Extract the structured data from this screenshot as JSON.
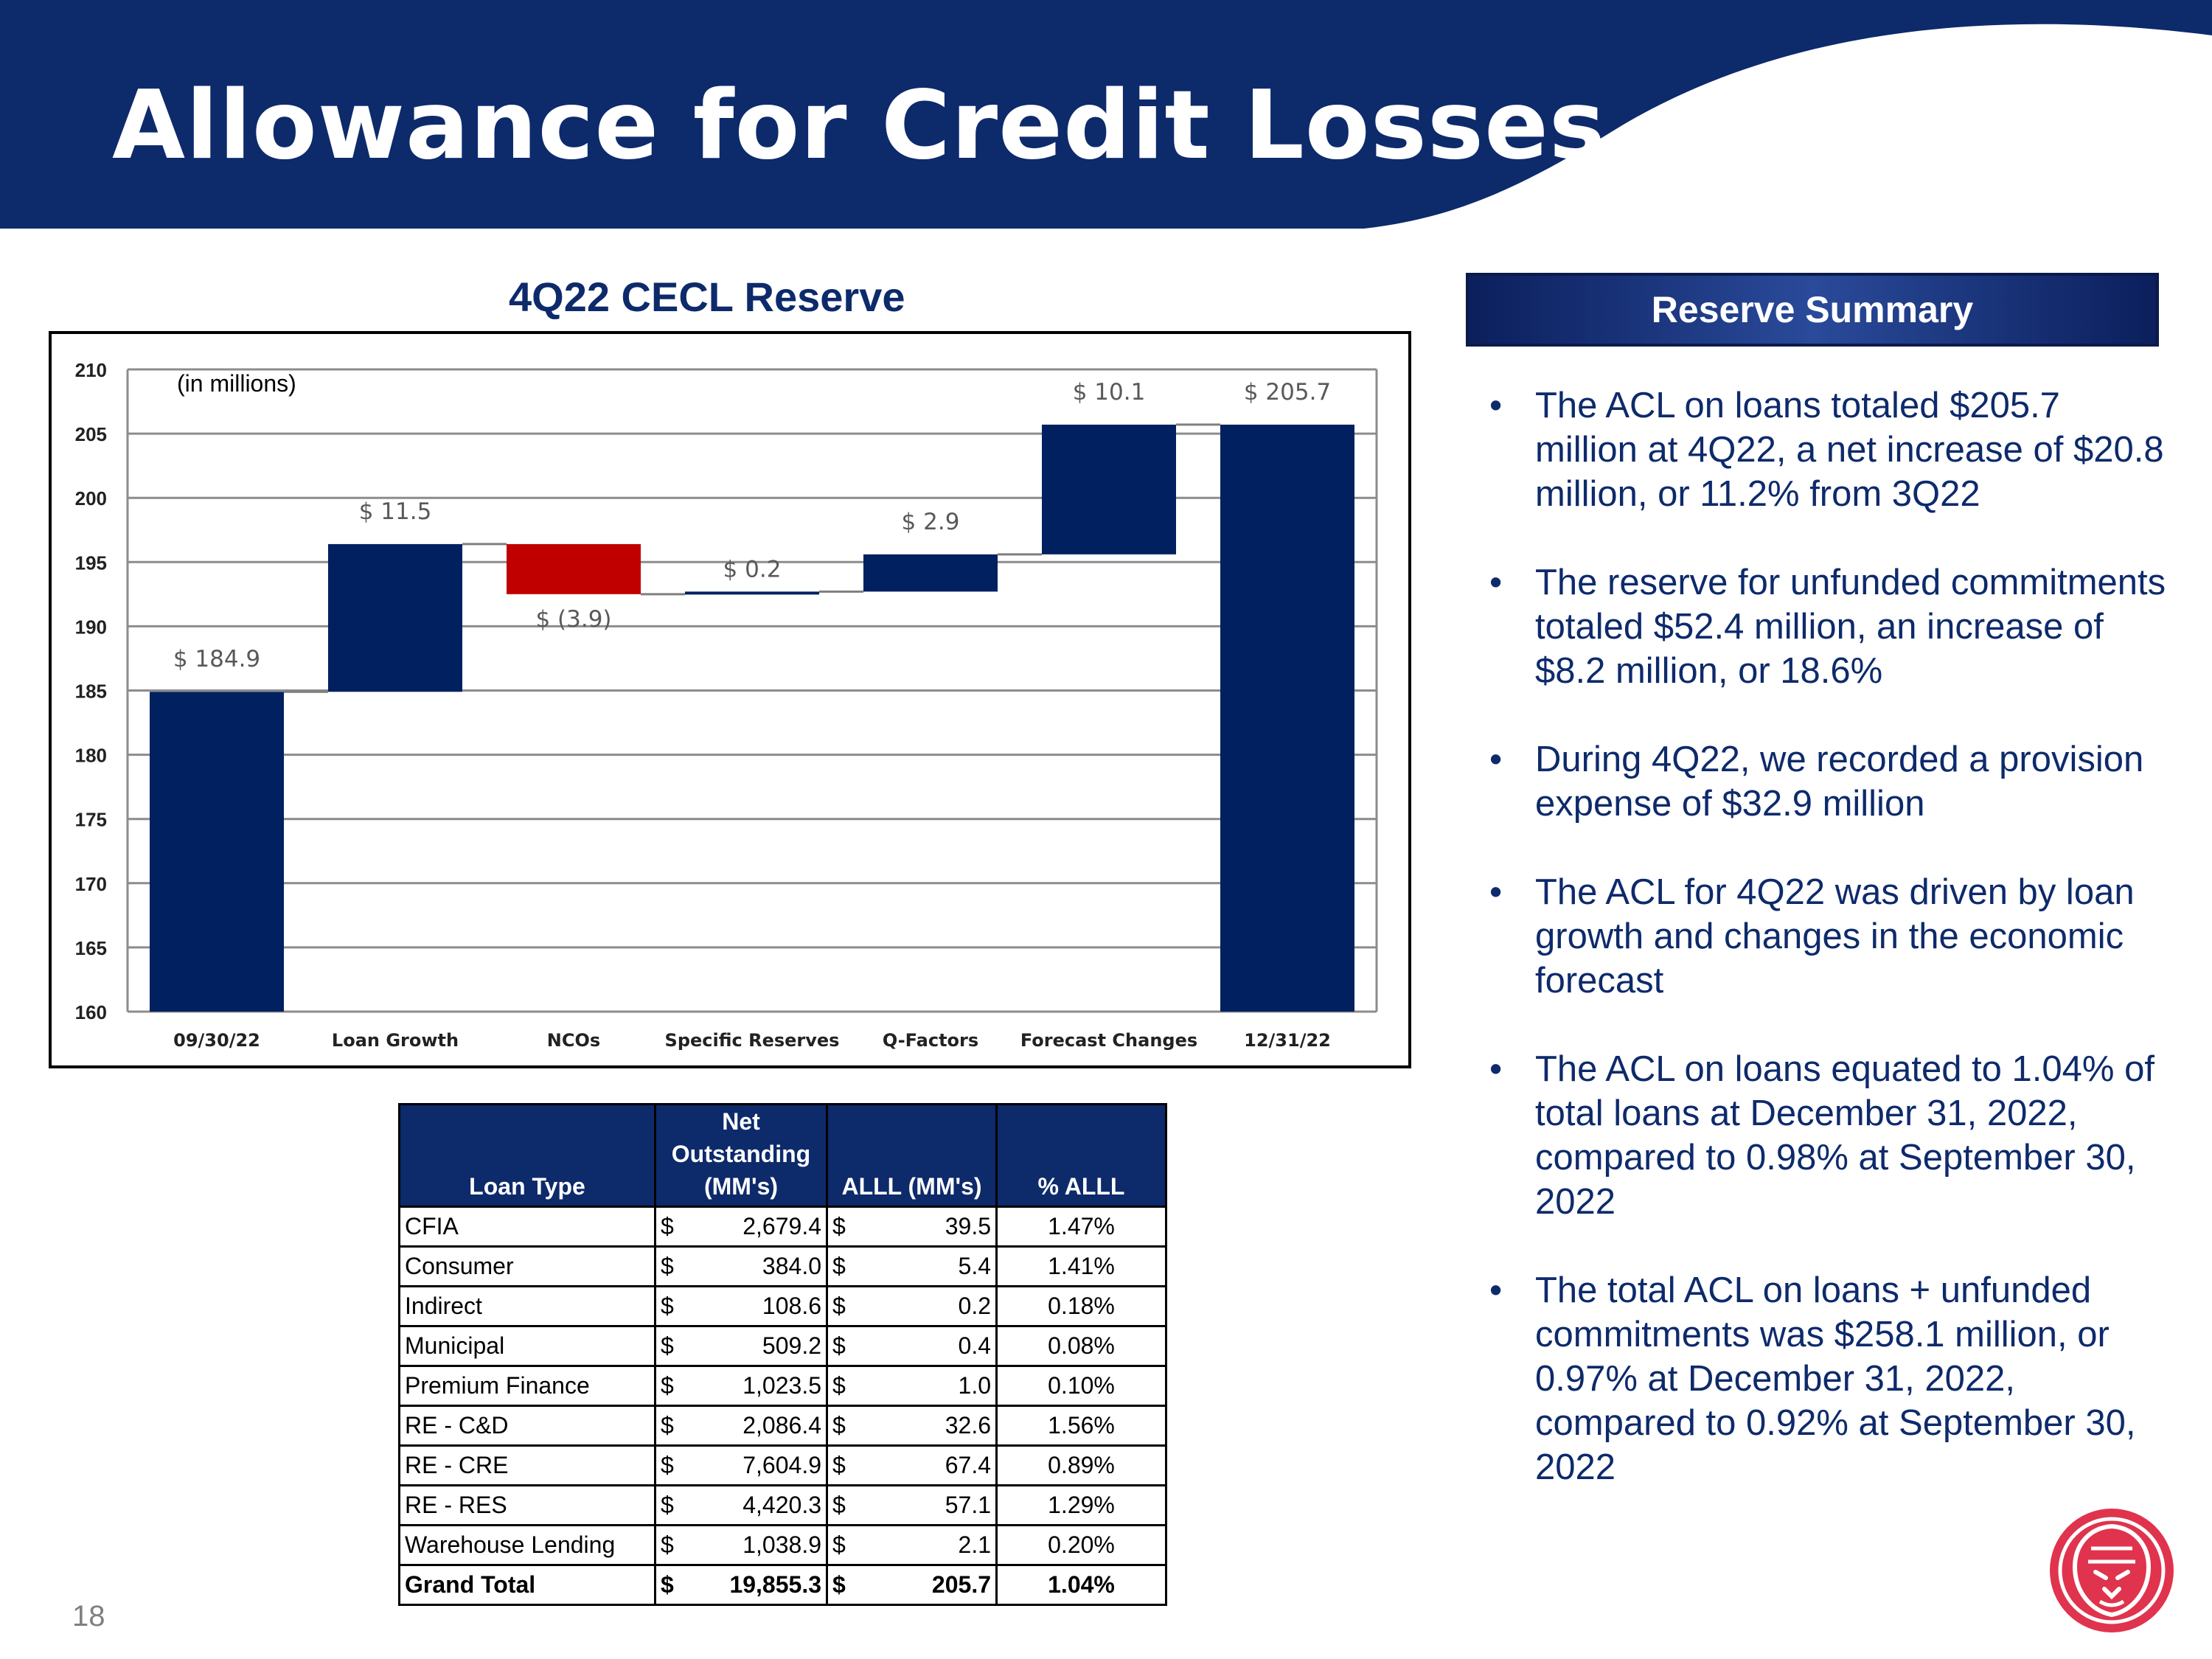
{
  "page": {
    "title": "Allowance for Credit Losses",
    "page_number": "18"
  },
  "colors": {
    "navy": "#0d2a6b",
    "bar_navy": "#002060",
    "decrease_red": "#c00000",
    "brand_red": "#e0334d"
  },
  "chart_data": {
    "type": "waterfall",
    "title": "4Q22 CECL Reserve",
    "unit_note": "(in millions)",
    "categories": [
      "09/30/22",
      "Loan Growth",
      "NCOs",
      "Specific Reserves",
      "Q-Factors",
      "Forecast Changes",
      "12/31/22"
    ],
    "values": [
      184.9,
      11.5,
      -3.9,
      0.2,
      2.9,
      10.1,
      205.7
    ],
    "kinds": [
      "total",
      "increase",
      "decrease",
      "increase",
      "increase",
      "increase",
      "total"
    ],
    "data_labels": [
      "$ 184.9",
      "$ 11.5",
      "$ (3.9)",
      "$ 0.2",
      "$ 2.9",
      "$ 10.1",
      "$ 205.7"
    ],
    "ylim": [
      160,
      210
    ],
    "yticks": [
      160,
      165,
      170,
      175,
      180,
      185,
      190,
      195,
      200,
      205,
      210
    ],
    "grid": true,
    "legend": "none"
  },
  "table": {
    "headers": [
      "Loan Type",
      "Net Outstanding (MM's)",
      "ALLL (MM's)",
      "% ALLL"
    ],
    "currency_symbol": "$",
    "rows": [
      {
        "type": "CFIA",
        "outstanding": "2,679.4",
        "alll": "39.5",
        "pct": "1.47%"
      },
      {
        "type": "Consumer",
        "outstanding": "384.0",
        "alll": "5.4",
        "pct": "1.41%"
      },
      {
        "type": "Indirect",
        "outstanding": "108.6",
        "alll": "0.2",
        "pct": "0.18%"
      },
      {
        "type": "Municipal",
        "outstanding": "509.2",
        "alll": "0.4",
        "pct": "0.08%"
      },
      {
        "type": "Premium Finance",
        "outstanding": "1,023.5",
        "alll": "1.0",
        "pct": "0.10%"
      },
      {
        "type": "RE - C&D",
        "outstanding": "2,086.4",
        "alll": "32.6",
        "pct": "1.56%"
      },
      {
        "type": "RE - CRE",
        "outstanding": "7,604.9",
        "alll": "67.4",
        "pct": "0.89%"
      },
      {
        "type": "RE - RES",
        "outstanding": "4,420.3",
        "alll": "57.1",
        "pct": "1.29%"
      },
      {
        "type": "Warehouse Lending",
        "outstanding": "1,038.9",
        "alll": "2.1",
        "pct": "0.20%"
      }
    ],
    "total": {
      "type": "Grand Total",
      "outstanding": "19,855.3",
      "alll": "205.7",
      "pct": "1.04%"
    }
  },
  "summary": {
    "title": "Reserve Summary",
    "bullet_glyph": "•",
    "bullets": [
      "The ACL on loans totaled $205.7 million at 4Q22, a net increase of $20.8 million, or 11.2% from 3Q22",
      "The reserve for unfunded commitments totaled $52.4 million, an increase of $8.2 million, or 18.6%",
      "During 4Q22, we recorded a provision expense of $32.9 million",
      "The ACL for 4Q22 was driven by loan growth and changes in the economic forecast",
      "The ACL on loans equated to 1.04% of total loans at December 31, 2022, compared to 0.98% at September 30, 2022",
      "The total ACL on loans + unfunded commitments was $258.1 million, or 0.97% at December 31, 2022, compared to 0.92% at September 30, 2022"
    ]
  },
  "logo": {
    "icon": "lion-head-icon"
  }
}
